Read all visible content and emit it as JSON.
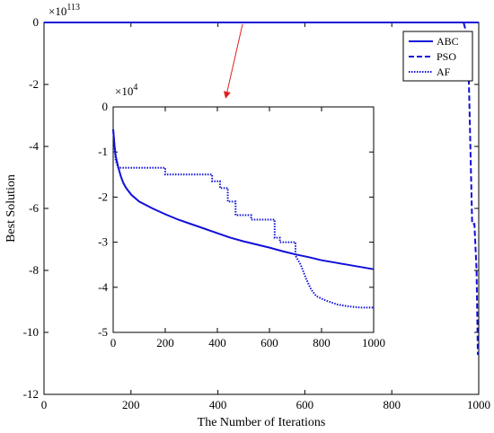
{
  "chart_data": [
    {
      "type": "line",
      "xlabel": "The Number of Iterations",
      "ylabel": "Best Solution",
      "exponent": {
        "base": "×10",
        "power": "113"
      },
      "xlim": [
        0,
        1000
      ],
      "ylim": [
        -12,
        0
      ],
      "xticks": [
        0,
        200,
        400,
        600,
        800,
        1000
      ],
      "yticks": [
        0,
        -2,
        -4,
        -6,
        -8,
        -10,
        -12
      ],
      "legend_position": "top-right",
      "series": [
        {
          "name": "ABC",
          "style": "solid",
          "color": "#1010d8",
          "x": [
            0,
            1000
          ],
          "y": [
            0,
            0
          ]
        },
        {
          "name": "PSO",
          "style": "dashed",
          "color": "#1010d8",
          "x": [
            0,
            965,
            975,
            985,
            990,
            995,
            998,
            1000
          ],
          "y": [
            0,
            0,
            -0.5,
            -6.5,
            -6.5,
            -8.0,
            -10.7,
            -10.7
          ]
        },
        {
          "name": "AF",
          "style": "dotted",
          "color": "#1010d8",
          "x": [
            0,
            1000
          ],
          "y": [
            0,
            0
          ]
        }
      ]
    },
    {
      "type": "line",
      "exponent": {
        "base": "×10",
        "power": "4"
      },
      "xlim": [
        0,
        1000
      ],
      "ylim": [
        -5,
        0
      ],
      "xticks": [
        0,
        200,
        400,
        600,
        800,
        1000
      ],
      "yticks": [
        0,
        -1,
        -2,
        -3,
        -4,
        -5
      ],
      "series": [
        {
          "name": "ABC",
          "style": "solid",
          "color": "#1010d8",
          "x": [
            0,
            5,
            10,
            20,
            30,
            40,
            50,
            70,
            100,
            150,
            200,
            250,
            300,
            350,
            400,
            450,
            500,
            550,
            600,
            650,
            700,
            750,
            800,
            850,
            900,
            950,
            1000
          ],
          "y": [
            -0.5,
            -0.85,
            -1.1,
            -1.35,
            -1.55,
            -1.7,
            -1.8,
            -1.95,
            -2.1,
            -2.25,
            -2.38,
            -2.5,
            -2.6,
            -2.7,
            -2.8,
            -2.9,
            -2.98,
            -3.05,
            -3.12,
            -3.2,
            -3.27,
            -3.33,
            -3.4,
            -3.45,
            -3.5,
            -3.55,
            -3.6
          ]
        },
        {
          "name": "AF",
          "style": "dotted",
          "color": "#1010d8",
          "x": [
            0,
            5,
            10,
            20,
            200,
            200,
            380,
            380,
            410,
            410,
            440,
            440,
            470,
            470,
            530,
            530,
            570,
            570,
            620,
            620,
            640,
            640,
            700,
            700,
            720,
            740,
            760,
            780,
            820,
            860,
            900,
            950,
            1000
          ],
          "y": [
            -0.5,
            -0.9,
            -1.2,
            -1.35,
            -1.35,
            -1.5,
            -1.5,
            -1.65,
            -1.65,
            -1.8,
            -1.8,
            -2.1,
            -2.1,
            -2.4,
            -2.4,
            -2.5,
            -2.5,
            -2.5,
            -2.5,
            -2.9,
            -2.9,
            -3.0,
            -3.0,
            -3.3,
            -3.5,
            -3.8,
            -4.05,
            -4.2,
            -4.3,
            -4.38,
            -4.42,
            -4.45,
            -4.45
          ]
        }
      ]
    }
  ]
}
